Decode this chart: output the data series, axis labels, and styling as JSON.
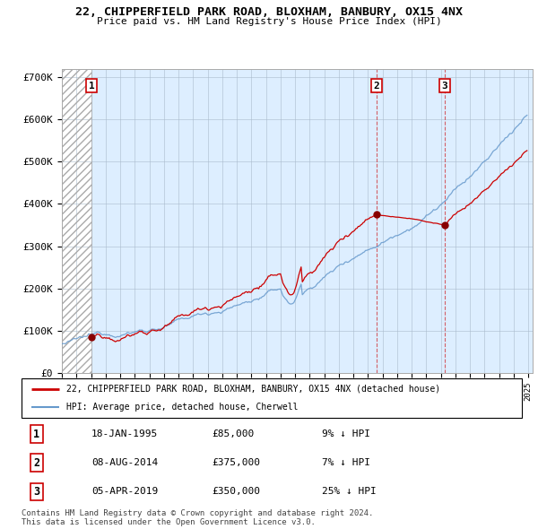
{
  "title": "22, CHIPPERFIELD PARK ROAD, BLOXHAM, BANBURY, OX15 4NX",
  "subtitle": "Price paid vs. HM Land Registry's House Price Index (HPI)",
  "ylabel_ticks": [
    "£0",
    "£100K",
    "£200K",
    "£300K",
    "£400K",
    "£500K",
    "£600K",
    "£700K"
  ],
  "ytick_values": [
    0,
    100000,
    200000,
    300000,
    400000,
    500000,
    600000,
    700000
  ],
  "ylim": [
    0,
    720000
  ],
  "transactions": [
    {
      "date_year": 1995.05,
      "price": 85000,
      "label": "1"
    },
    {
      "date_year": 2014.58,
      "price": 375000,
      "label": "2"
    },
    {
      "date_year": 2019.25,
      "price": 350000,
      "label": "3"
    }
  ],
  "transaction_labels_info": [
    {
      "num": "1",
      "date": "18-JAN-1995",
      "price": "£85,000",
      "pct": "9% ↓ HPI"
    },
    {
      "num": "2",
      "date": "08-AUG-2014",
      "price": "£375,000",
      "pct": "7% ↓ HPI"
    },
    {
      "num": "3",
      "date": "05-APR-2019",
      "price": "£350,000",
      "pct": "25% ↓ HPI"
    }
  ],
  "legend_line1": "22, CHIPPERFIELD PARK ROAD, BLOXHAM, BANBURY, OX15 4NX (detached house)",
  "legend_line2": "HPI: Average price, detached house, Cherwell",
  "legend_color1": "#cc0000",
  "legend_color2": "#6699cc",
  "footer": "Contains HM Land Registry data © Crown copyright and database right 2024.\nThis data is licensed under the Open Government Licence v3.0.",
  "bg_color": "#ddeeff",
  "grid_color": "#aabbcc",
  "vline_color": "#cc0000",
  "marker_color": "#880000",
  "hatch_edgecolor": "#aaaaaa"
}
